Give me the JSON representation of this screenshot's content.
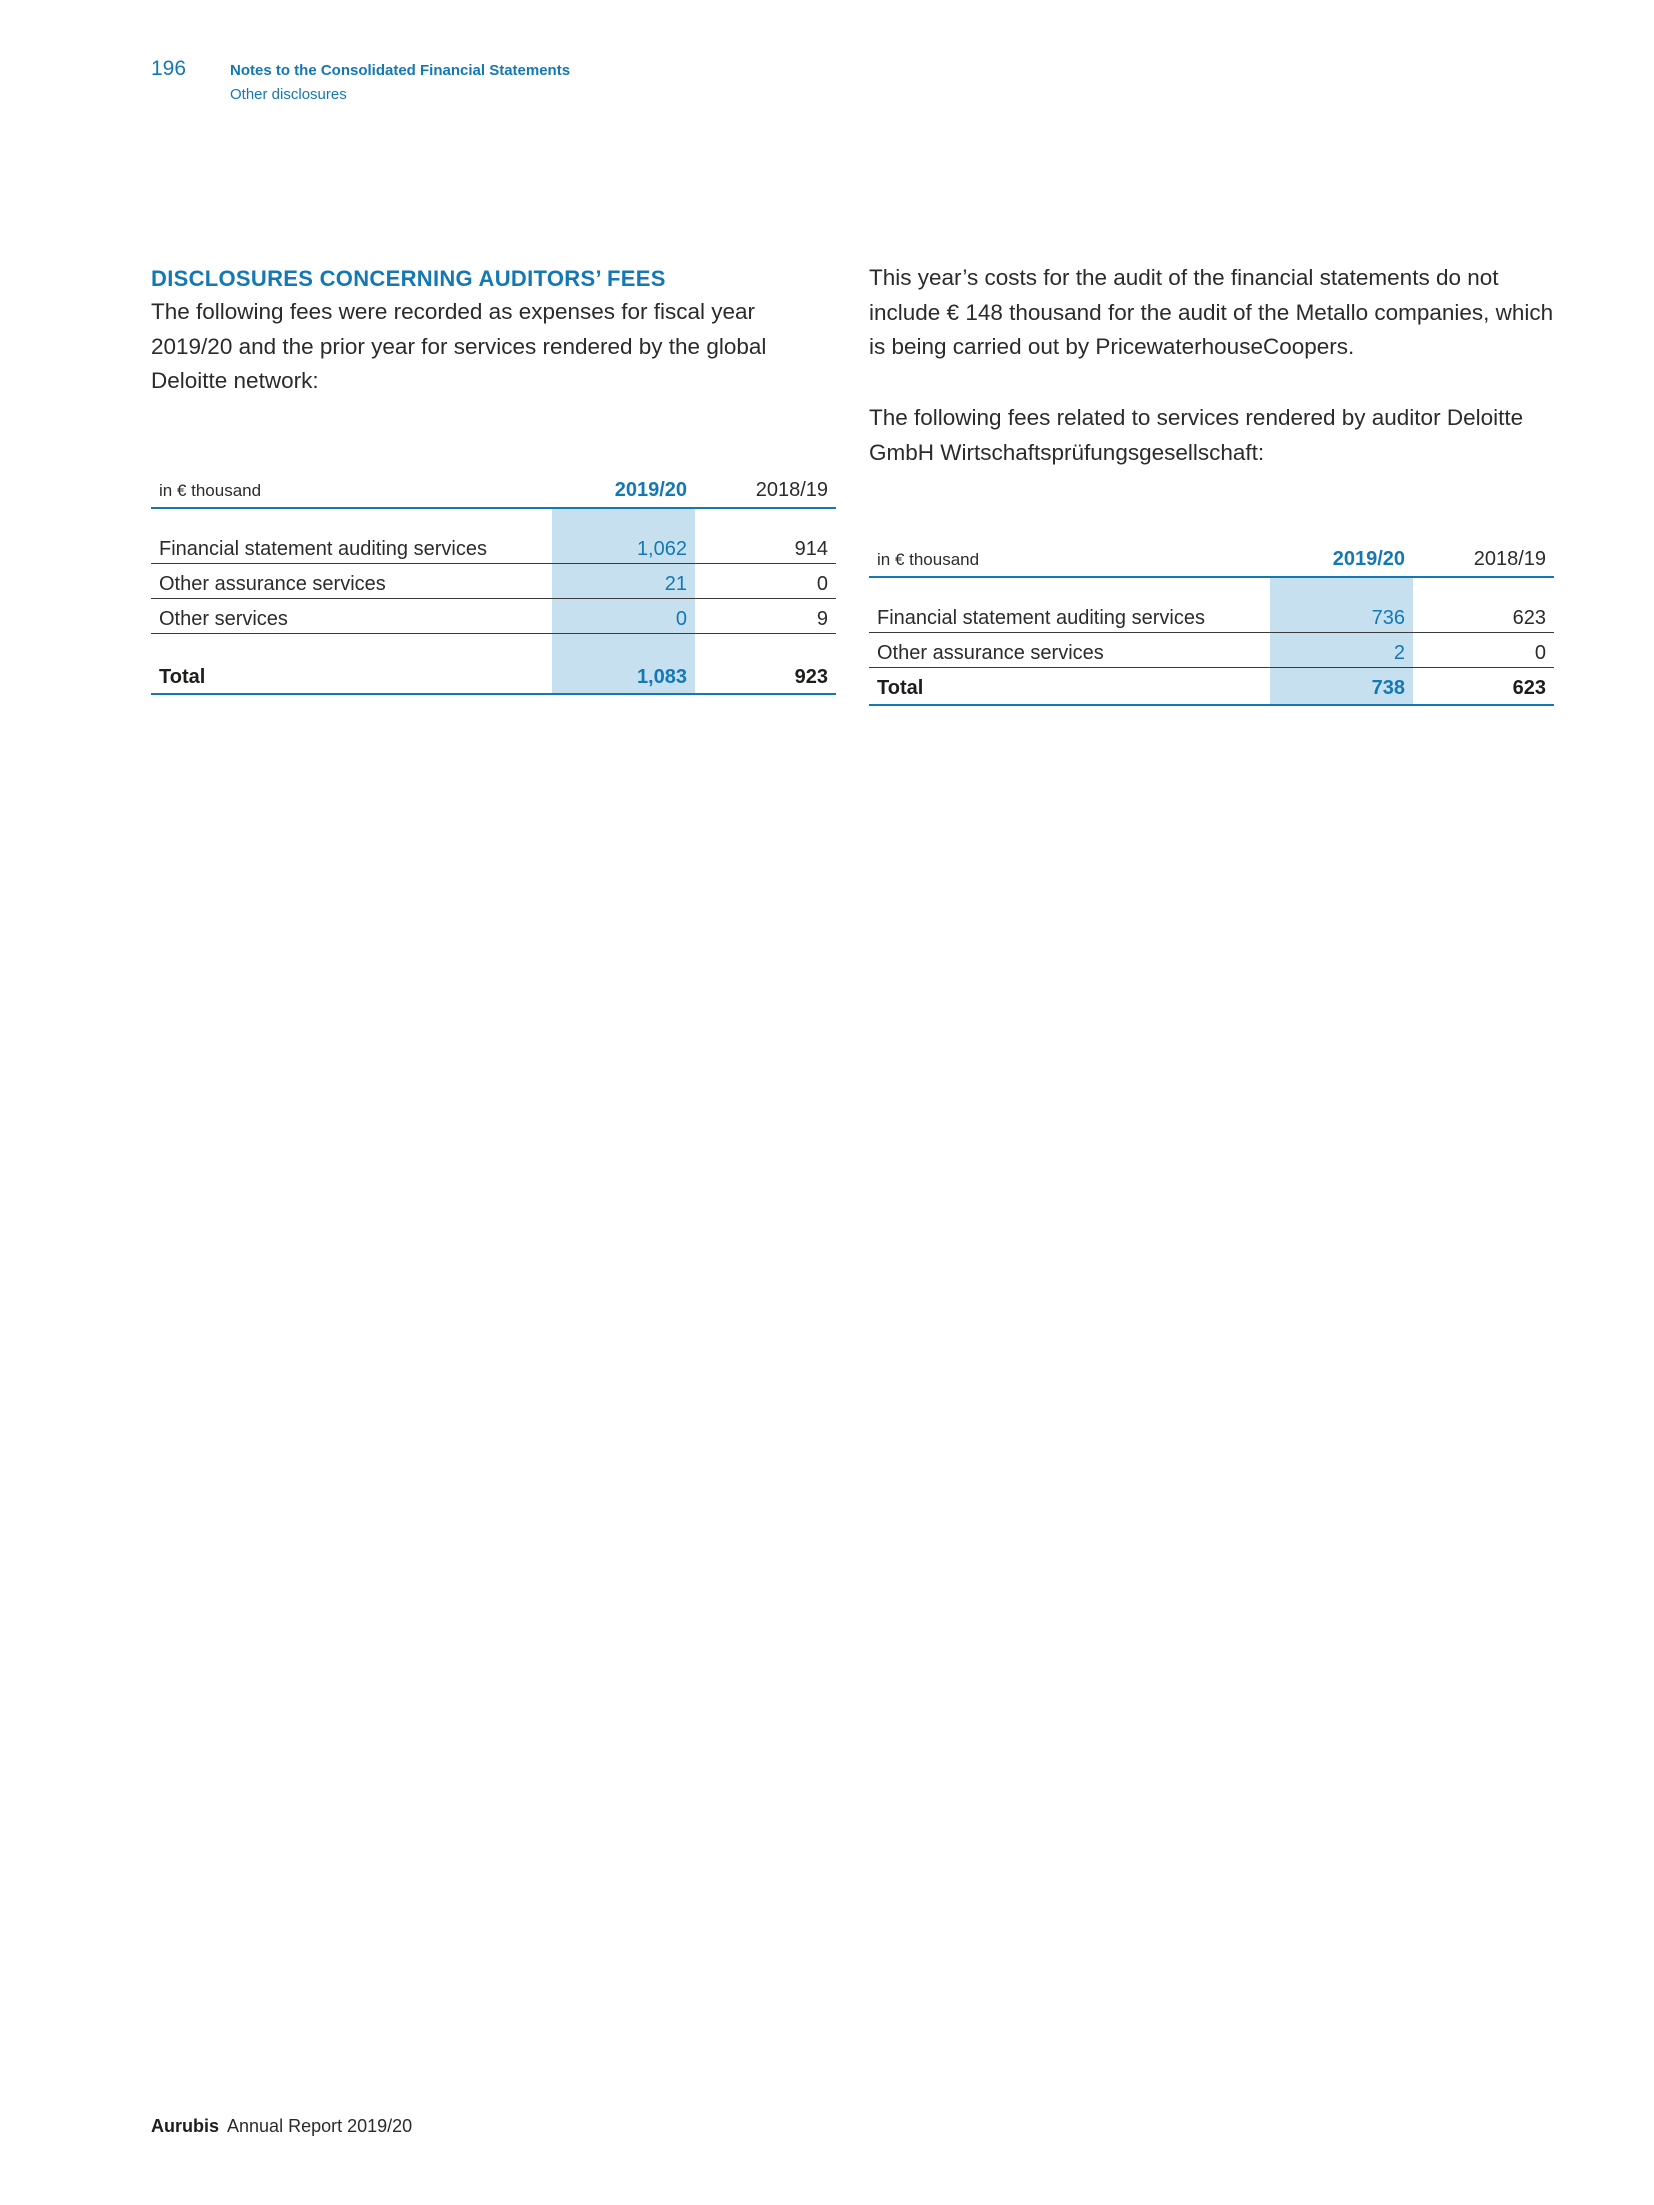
{
  "header": {
    "page_number": "196",
    "title": "Notes to the Consolidated Financial Statements",
    "subtitle": "Other disclosures"
  },
  "section": {
    "heading": "DISCLOSURES CONCERNING AUDITORS’ FEES",
    "intro": "The following fees were recorded as expenses for fiscal year 2019/20 and the prior year for services rendered by the global Deloitte network:"
  },
  "right_column": {
    "paragraph1": "This year’s costs for the audit of the financial statements do not include € 148 thousand for the audit of the Metallo companies, which is being carried out by PricewaterhouseCoopers.",
    "paragraph2": "The following fees related to services rendered by auditor Deloitte GmbH Wirtschaftsprüfungsgesellschaft:"
  },
  "table1": {
    "unit": "in € thousand",
    "col_current": "2019/20",
    "col_prior": "2018/19",
    "rows": [
      {
        "label": "Financial statement auditing services",
        "current": "1,062",
        "prior": "914"
      },
      {
        "label": "Other assurance services",
        "current": "21",
        "prior": "0"
      },
      {
        "label": "Other services",
        "current": "0",
        "prior": "9"
      }
    ],
    "total": {
      "label": "Total",
      "current": "1,083",
      "prior": "923"
    }
  },
  "table2": {
    "unit": "in € thousand",
    "col_current": "2019/20",
    "col_prior": "2018/19",
    "rows": [
      {
        "label": "Financial statement auditing services",
        "current": "736",
        "prior": "623"
      },
      {
        "label": "Other assurance services",
        "current": "2",
        "prior": "0"
      }
    ],
    "total": {
      "label": "Total",
      "current": "738",
      "prior": "623"
    }
  },
  "footer": {
    "brand": "Aurubis",
    "text": "Annual Report 2019/20"
  },
  "colors": {
    "accent": "#1478b4",
    "highlight_column": "#c6e0ef",
    "text": "#2b2b2b"
  }
}
